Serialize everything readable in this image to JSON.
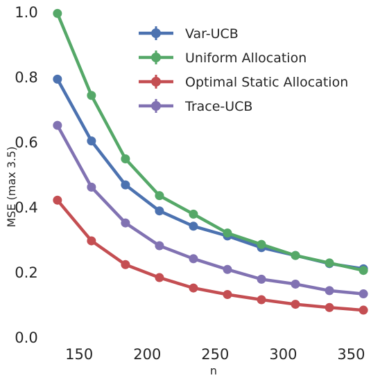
{
  "chart_data": {
    "type": "line",
    "xlabel": "n",
    "ylabel": "MSE (max 3.5)",
    "xlim": [
      130,
      362
    ],
    "ylim": [
      0,
      1.0
    ],
    "x_ticks": [
      150,
      200,
      250,
      300,
      350
    ],
    "y_ticks": [
      "0.0",
      "0.2",
      "0.4",
      "0.6",
      "0.8",
      "1.0"
    ],
    "grid": false,
    "legend_position": "top-right",
    "x": [
      134,
      159,
      184,
      209,
      234,
      259,
      284,
      309,
      334,
      359
    ],
    "series": [
      {
        "name": "Var-UCB",
        "color": "#4c72b0",
        "values": [
          0.795,
          0.605,
          0.47,
          0.39,
          0.343,
          0.313,
          0.277,
          0.253,
          0.228,
          0.212
        ]
      },
      {
        "name": "Uniform Allocation",
        "color": "#55a868",
        "values": [
          0.997,
          0.745,
          0.55,
          0.437,
          0.38,
          0.322,
          0.287,
          0.253,
          0.23,
          0.207
        ]
      },
      {
        "name": "Optimal Static Allocation",
        "color": "#c44e52",
        "values": [
          0.423,
          0.298,
          0.225,
          0.185,
          0.153,
          0.133,
          0.117,
          0.103,
          0.093,
          0.085
        ]
      },
      {
        "name": "Trace-UCB",
        "color": "#8172b2",
        "values": [
          0.653,
          0.463,
          0.353,
          0.283,
          0.243,
          0.21,
          0.18,
          0.165,
          0.145,
          0.135
        ]
      }
    ]
  }
}
